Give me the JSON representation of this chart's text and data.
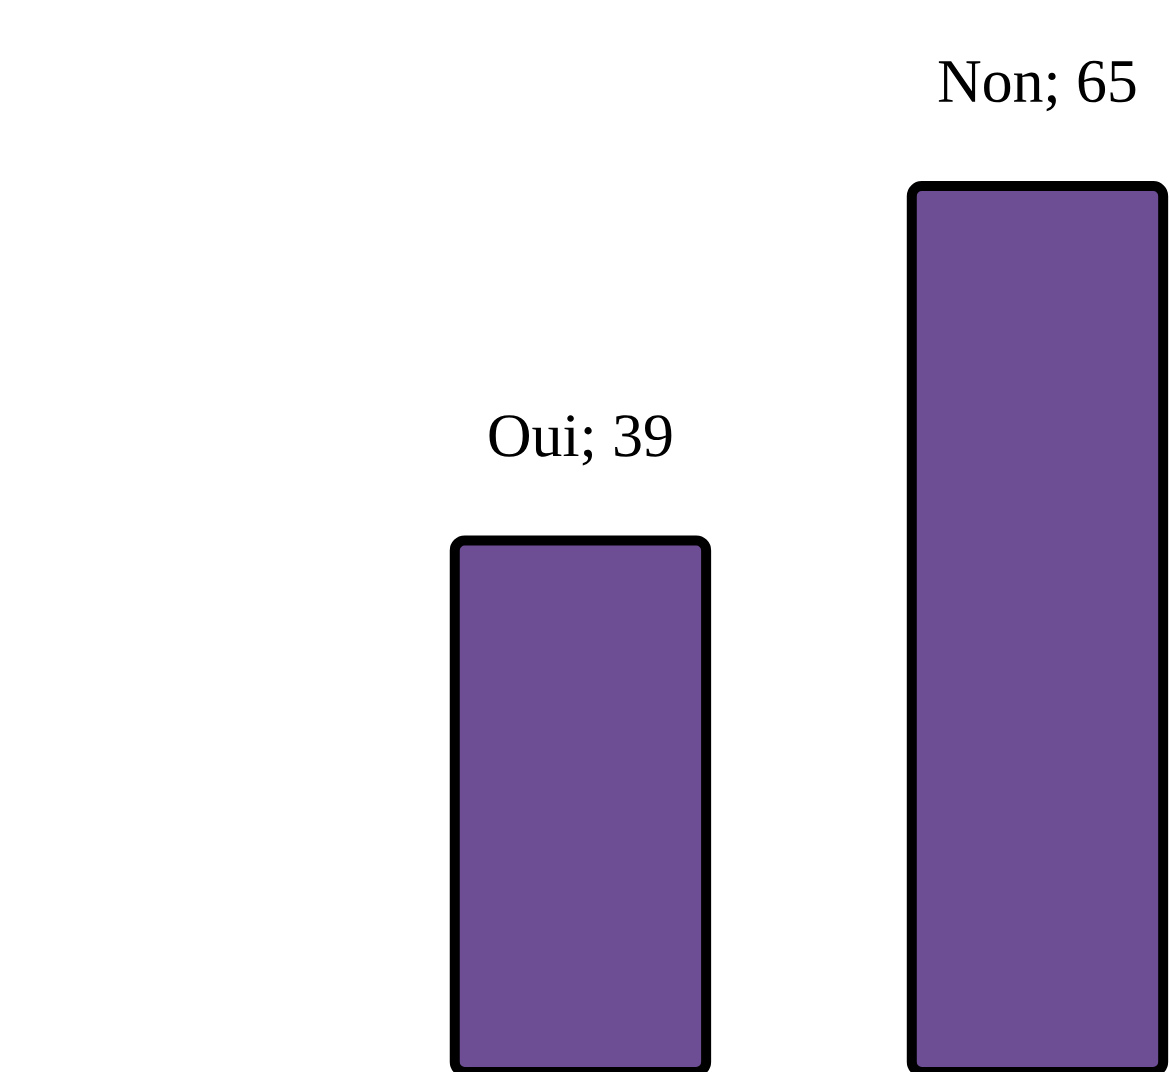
{
  "chart_data": {
    "type": "bar",
    "categories": [
      null,
      null
    ],
    "values": [
      39,
      65
    ],
    "value_labels": [
      "Oui; 39",
      "Non; 65"
    ],
    "color": "#6d4e94"
  }
}
